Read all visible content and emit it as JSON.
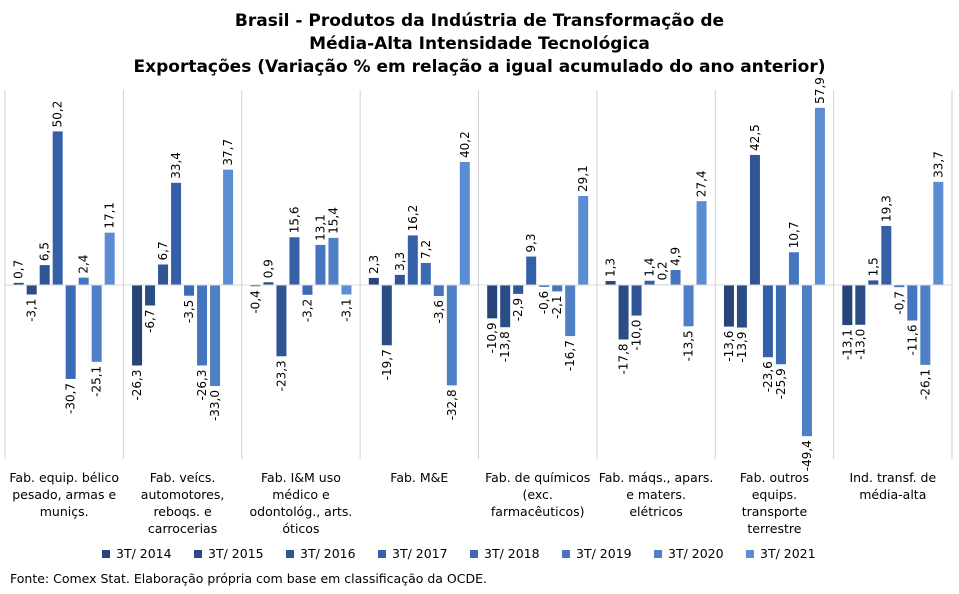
{
  "chart_data": {
    "type": "bar",
    "title_lines": [
      "Brasil - Produtos da Indústria de Transformação de",
      "Média-Alta Intensidade Tecnológica",
      "Exportações (Variação % em relação a igual acumulado do ano anterior)"
    ],
    "categories": [
      [
        "Fab. equip. bélico",
        "pesado, armas e",
        "muniçs."
      ],
      [
        "Fab. veícs.",
        "automotores,",
        "reboqs. e",
        "carrocerias"
      ],
      [
        "Fab. I&M uso",
        "médico e",
        "odontológ., arts.",
        "óticos"
      ],
      [
        "Fab. M&E"
      ],
      [
        "Fab. de químicos",
        "(exc.",
        "farmacêuticos)"
      ],
      [
        "Fab. máqs., apars.",
        "e maters.",
        "elétricos"
      ],
      [
        "Fab. outros",
        "equips.",
        "transporte",
        "terrestre"
      ],
      [
        "Ind. transf. de",
        "média-alta"
      ]
    ],
    "series": [
      {
        "name": "3T/ 2014",
        "color": "#264478",
        "values": [
          0.7,
          -26.3,
          -0.4,
          2.3,
          -10.9,
          1.3,
          -13.6,
          -13.1
        ]
      },
      {
        "name": "3T/ 2015",
        "color": "#2A4D86",
        "values": [
          -3.1,
          -6.7,
          0.9,
          -19.7,
          -13.8,
          -17.8,
          -13.9,
          -13.0
        ]
      },
      {
        "name": "3T/ 2016",
        "color": "#2F5597",
        "values": [
          6.5,
          6.7,
          -23.3,
          3.3,
          -2.9,
          -10.0,
          42.5,
          1.5
        ]
      },
      {
        "name": "3T/ 2017",
        "color": "#3560A7",
        "values": [
          50.2,
          33.4,
          15.6,
          16.2,
          9.3,
          1.4,
          -23.6,
          19.3
        ]
      },
      {
        "name": "3T/ 2018",
        "color": "#3C6BB5",
        "values": [
          -30.7,
          -3.5,
          -3.2,
          7.2,
          -0.6,
          0.2,
          -25.9,
          -0.7
        ]
      },
      {
        "name": "3T/ 2019",
        "color": "#4575BE",
        "values": [
          2.4,
          -26.3,
          13.1,
          -3.6,
          -2.1,
          4.9,
          10.7,
          -11.6
        ]
      },
      {
        "name": "3T/ 2020",
        "color": "#4F7FC5",
        "values": [
          -25.1,
          -33.0,
          15.4,
          -32.8,
          -16.7,
          -13.5,
          -49.4,
          -26.1
        ]
      },
      {
        "name": "3T/ 2021",
        "color": "#5B8DD3",
        "values": [
          17.1,
          37.7,
          -3.1,
          40.2,
          29.1,
          27.4,
          57.9,
          33.7
        ]
      }
    ],
    "value_labels": [
      [
        "0,7",
        "-26,3",
        "-0,4",
        "2,3",
        "-10,9",
        "1,3",
        "-13,6",
        "-13,1"
      ],
      [
        "-3,1",
        "-6,7",
        "0,9",
        "-19,7",
        "-13,8",
        "-17,8",
        "-13,9",
        "-13,0"
      ],
      [
        "6,5",
        "6,7",
        "-23,3",
        "3,3",
        "-2,9",
        "-10,0",
        "42,5",
        "1,5"
      ],
      [
        "50,2",
        "33,4",
        "15,6",
        "16,2",
        "9,3",
        "1,4",
        "-23,6",
        "19,3"
      ],
      [
        "-30,7",
        "-3,5",
        "-3,2",
        "7,2",
        "-0,6",
        "0,2",
        "-25,9",
        "-0,7"
      ],
      [
        "2,4",
        "-26,3",
        "13,1",
        "-3,6",
        "-2,1",
        "4,9",
        "10,7",
        "-11,6"
      ],
      [
        "-25,1",
        "-33,0",
        "15,4",
        "-32,8",
        "-16,7",
        "-13,5",
        "-49,4",
        "-26,1"
      ],
      [
        "17,1",
        "37,7",
        "-3,1",
        "40,2",
        "29,1",
        "27,4",
        "57,9",
        "33,7"
      ]
    ],
    "ylim": [
      -57.9,
      63.1
    ],
    "grid": false,
    "legend_position": "bottom"
  },
  "source": "Fonte: Comex Stat. Elaboração própria com base em classificação da OCDE."
}
